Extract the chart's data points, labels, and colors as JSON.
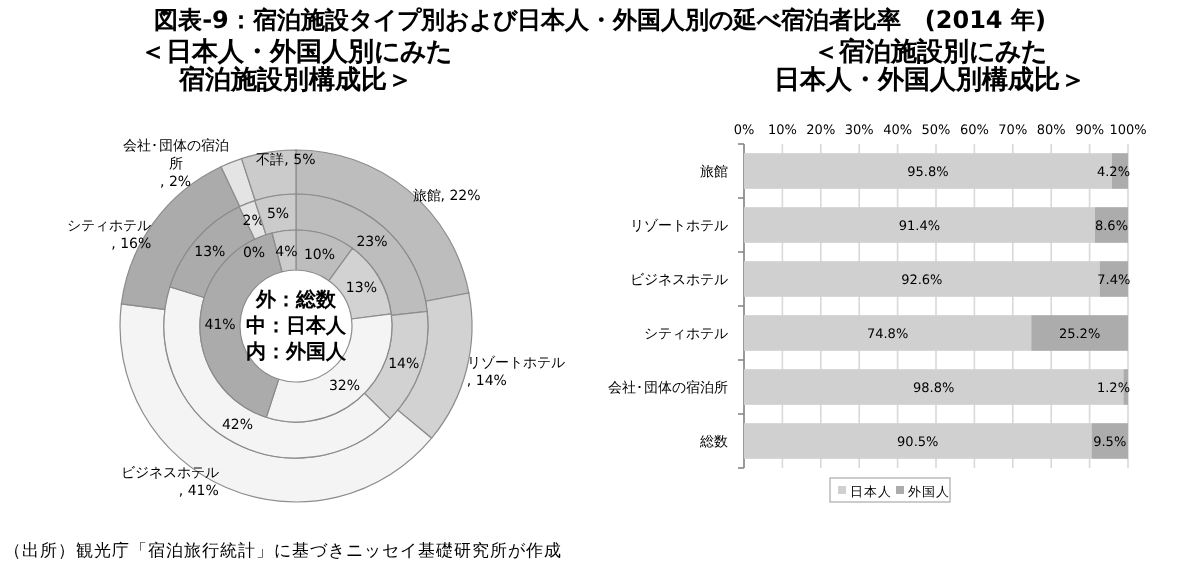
{
  "chart_data": [
    {
      "type": "donut",
      "title": "図表-9：宿泊施設タイプ別および日本人・外国人別の延べ宿泊者比率　(2014 年)",
      "subtitle": "＜日本人・外国人別にみた宿泊施設別構成比＞",
      "categories": [
        "旅館",
        "リゾートホテル",
        "ビジネスホテル",
        "シティホテル",
        "会社･団体の宿泊所",
        "不詳"
      ],
      "colors": [
        "#bdbdbd",
        "#d2d2d2",
        "#f4f4f4",
        "#ababab",
        "#e4e4e4",
        "#cbcbcb"
      ],
      "series": [
        {
          "values": [
            22,
            14,
            41,
            16,
            2,
            5
          ],
          "value_labels": [
            ", 22%",
            ", 14%",
            ", 41%",
            ", 16%",
            ", 2%",
            ", 5%"
          ]
        },
        {
          "values": [
            23,
            14,
            42,
            13,
            2,
            5
          ],
          "value_labels": [
            "23%",
            "14%",
            "42%",
            "13%",
            "2%",
            "5%"
          ]
        },
        {
          "values": [
            10,
            13,
            32,
            41,
            0,
            4
          ],
          "value_labels": [
            "10%",
            "13%",
            "32%",
            "41%",
            "0%",
            "4%"
          ]
        }
      ],
      "annotations": [
        "外：総数",
        "中：日本人",
        "内：外国人",
        "（出所）観光庁「宿泊旅行統計」に基づきニッセイ基礎研究所が作成"
      ]
    },
    {
      "type": "bar",
      "orientation": "horizontal",
      "stacked": true,
      "title": "＜宿泊施設別にみた日本人・外国人別構成比＞",
      "categories": [
        "旅館",
        "リゾートホテル",
        "ビジネスホテル",
        "シティホテル",
        "会社･団体の宿泊所",
        "総数"
      ],
      "series": [
        {
          "name": "日本人",
          "color": "#d0d0d0",
          "values": [
            95.8,
            91.4,
            92.6,
            74.8,
            98.8,
            90.5
          ],
          "value_labels": [
            "95.8%",
            "91.4%",
            "92.6%",
            "74.8%",
            "98.8%",
            "90.5%"
          ]
        },
        {
          "name": "外国人",
          "color": "#acacac",
          "values": [
            4.2,
            8.6,
            7.4,
            25.2,
            1.2,
            9.5
          ],
          "value_labels": [
            "4.2%",
            "8.6%",
            "7.4%",
            "25.2%",
            "1.2%",
            "9.5%"
          ]
        }
      ],
      "xlim": [
        0,
        100
      ],
      "xticks": [
        {
          "value": 0,
          "label": "0%"
        },
        {
          "value": 10,
          "label": "10%"
        },
        {
          "value": 20,
          "label": "20%"
        },
        {
          "value": 30,
          "label": "30%"
        },
        {
          "value": 40,
          "label": "40%"
        },
        {
          "value": 50,
          "label": "50%"
        },
        {
          "value": 60,
          "label": "60%"
        },
        {
          "value": 70,
          "label": "70%"
        },
        {
          "value": 80,
          "label": "80%"
        },
        {
          "value": 90,
          "label": "90%"
        },
        {
          "value": 100,
          "label": "100%"
        }
      ],
      "grid": "x",
      "legend": "bottom"
    }
  ]
}
